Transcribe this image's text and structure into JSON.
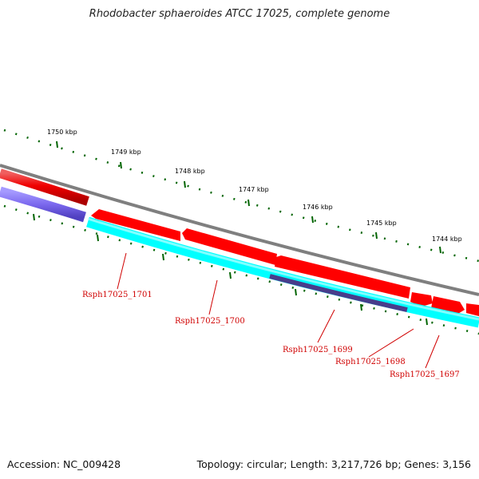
{
  "title": "Rhodobacter sphaeroides ATCC 17025, complete genome",
  "accession": "Accession: NC_009428",
  "summary": "Topology: circular; Length: 3,217,726 bp; Genes: 3,156",
  "colors": {
    "backbone": "#7f7f7f",
    "forward_gene": "#ff0000",
    "reverse_gene": "#00ffff",
    "operon_light": "#7b68ee",
    "operon_dark": "#483d8b",
    "tick": "#006400",
    "label": "#d00000"
  },
  "scale_labels": [
    "1750 kbp",
    "1749 kbp",
    "1748 kbp",
    "1747 kbp",
    "1746 kbp",
    "1745 kbp",
    "1744 kbp"
  ],
  "gene_labels": [
    "Rsph17025_1701",
    "Rsph17025_1700",
    "Rsph17025_1699",
    "Rsph17025_1698",
    "Rsph17025_1697"
  ]
}
